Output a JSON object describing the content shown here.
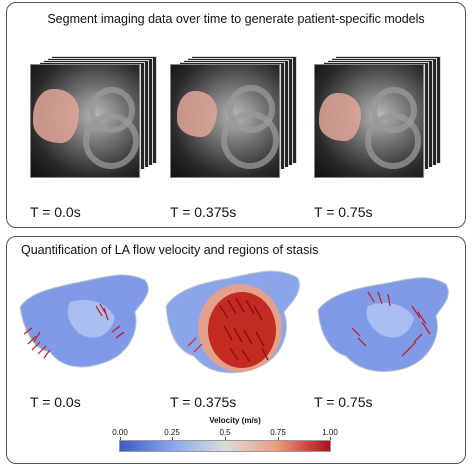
{
  "top_panel": {
    "title": "Segment imaging data over time to generate patient-specific models",
    "frames": [
      {
        "label": "T = 0.0s"
      },
      {
        "label": "T = 0.375s"
      },
      {
        "label": "T = 0.75s"
      }
    ]
  },
  "bottom_panel": {
    "title": "Quantification of LA flow velocity and regions of stasis",
    "frames": [
      {
        "label": "T = 0.0s"
      },
      {
        "label": "T = 0.375s"
      },
      {
        "label": "T = 0.75s"
      }
    ]
  },
  "colorbar": {
    "title": "Velocity (m/s)",
    "ticks": [
      "0.00",
      "0.25",
      "0.5",
      "0.75",
      "1.00"
    ],
    "range": [
      0,
      1
    ],
    "colors": [
      "#3d5bc4",
      "#8aa5ea",
      "#dcdcdc",
      "#eb9a7a",
      "#b40b1b"
    ]
  }
}
